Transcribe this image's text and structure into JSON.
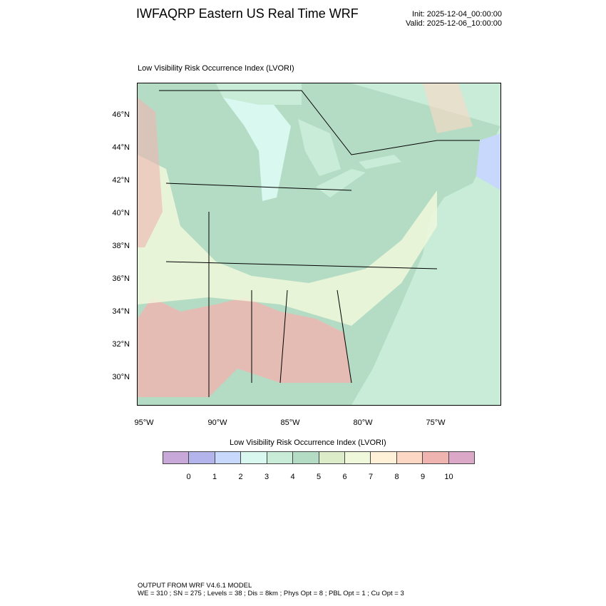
{
  "header": {
    "title": "IWFAQRP Eastern US Real Time WRF",
    "init": "Init: 2025-12-04_00:00:00",
    "valid": "Valid: 2025-12-06_10:00:00"
  },
  "map": {
    "subtitle": "Low Visibility Risk Occurrence Index   (LVORI)",
    "lat_labels": [
      "46°N",
      "44°N",
      "42°N",
      "40°N",
      "38°N",
      "36°N",
      "34°N",
      "32°N",
      "30°N"
    ],
    "lon_labels": [
      "95°W",
      "90°W",
      "85°W",
      "80°W",
      "75°W"
    ]
  },
  "colorbar": {
    "title": "Low Visibility Risk Occurrence Index  (LVORI)",
    "colors": [
      "#c8a8d8",
      "#b4b4ec",
      "#c8d8fc",
      "#d8f8f0",
      "#c8ecd8",
      "#b4dcc4",
      "#dcecc8",
      "#f0f8dc",
      "#fff0d8",
      "#fcd8c4",
      "#f0b4b0",
      "#dca8c8"
    ],
    "labels": [
      "0",
      "1",
      "2",
      "3",
      "4",
      "5",
      "6",
      "7",
      "8",
      "9",
      "10"
    ]
  },
  "footer": {
    "line1": "OUTPUT FROM WRF V4.6.1 MODEL",
    "line2": "WE = 310 ; SN = 275 ; Levels = 38 ; Dis = 8km ; Phys Opt = 8 ; PBL Opt = 1 ; Cu Opt = 3"
  }
}
